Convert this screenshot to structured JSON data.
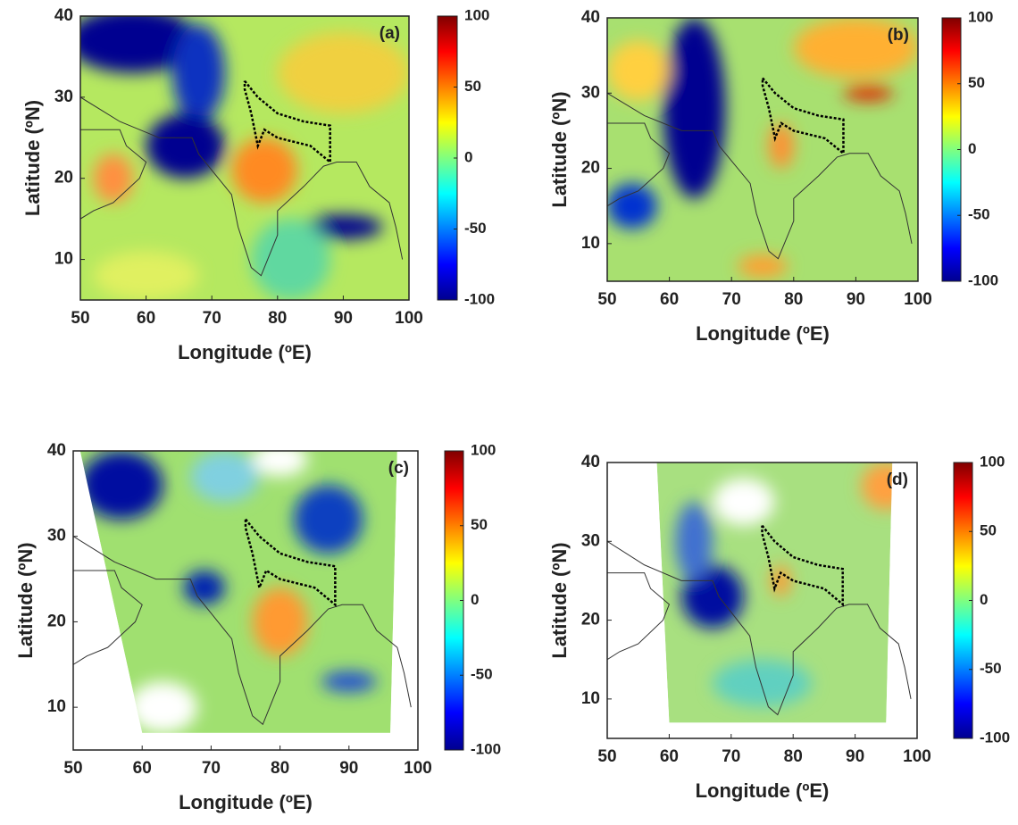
{
  "chart_data": [
    {
      "type": "heatmap",
      "panel_label": "(a)",
      "xlabel": "Longitude (ºE)",
      "ylabel": "Latitude (ºN)",
      "xlim": [
        50,
        100
      ],
      "xticks": [
        50,
        60,
        70,
        80,
        90,
        100
      ],
      "ylim": [
        5,
        40
      ],
      "yticks": [
        10,
        20,
        30,
        40
      ],
      "colorbar": {
        "lim": [
          -100,
          100
        ],
        "ticks": [
          -100,
          -50,
          0,
          50,
          100
        ]
      }
    },
    {
      "type": "heatmap",
      "panel_label": "(b)",
      "xlabel": "Longitude (ºE)",
      "ylabel": "Latitude (ºN)",
      "xlim": [
        50,
        100
      ],
      "xticks": [
        50,
        60,
        70,
        80,
        90,
        100
      ],
      "ylim": [
        5,
        40
      ],
      "yticks": [
        10,
        20,
        30,
        40
      ],
      "colorbar": {
        "lim": [
          -100,
          100
        ],
        "ticks": [
          -100,
          -50,
          0,
          50,
          100
        ]
      }
    },
    {
      "type": "heatmap",
      "panel_label": "(c)",
      "xlabel": "Longitude (ºE)",
      "ylabel": "Latitude (ºN)",
      "xlim": [
        50,
        100
      ],
      "xticks": [
        50,
        60,
        70,
        80,
        90,
        100
      ],
      "ylim": [
        5,
        40
      ],
      "yticks": [
        10,
        20,
        30,
        40
      ],
      "colorbar": {
        "lim": [
          -100,
          100
        ],
        "ticks": [
          -100,
          -50,
          0,
          50,
          100
        ]
      }
    },
    {
      "type": "heatmap",
      "panel_label": "(d)",
      "xlabel": "Longitude (ºE)",
      "ylabel": "Latitude (ºN)",
      "xlim": [
        50,
        100
      ],
      "xticks": [
        50,
        60,
        70,
        80,
        90,
        100
      ],
      "ylim": [
        5,
        40
      ],
      "yticks": [
        10,
        20,
        30,
        40
      ],
      "colorbar": {
        "lim": [
          -100,
          100
        ],
        "ticks": [
          -100,
          -50,
          0,
          50,
          100
        ]
      }
    }
  ]
}
